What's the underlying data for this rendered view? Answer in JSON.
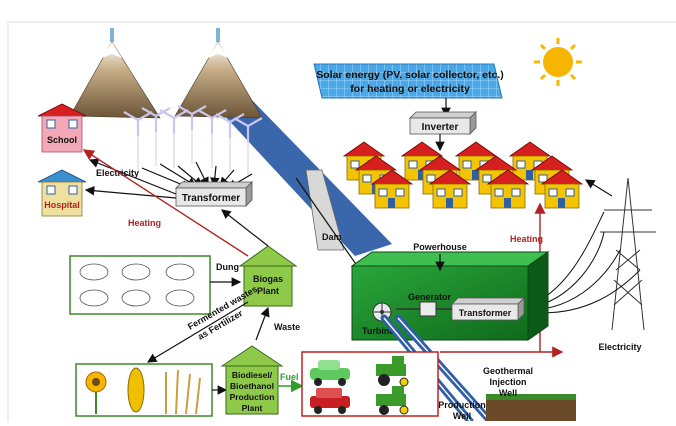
{
  "labels": {
    "solar_energy_line1": "Solar energy (PV, solar collector, etc.)",
    "solar_energy_line2": "for heating or electricity",
    "inverter": "Inverter",
    "school": "School",
    "hospital": "Hospital",
    "electricity_left": "Electricity",
    "transformer_top": "Transformer",
    "heating_left": "Heating",
    "dam": "Dam",
    "powerhouse": "Powerhouse",
    "generator": "Generator",
    "transformer_ph": "Transformer",
    "turbine": "Turbine",
    "heating_right": "Heating",
    "electricity_right": "Electricity",
    "dung": "Dung",
    "biogas_line1": "Biogas",
    "biogas_line2": "Plant",
    "waste": "Waste",
    "fermented_line1": "Fermented wastes",
    "fermented_line2": "as Fertilizer",
    "biodiesel_line1": "Biodiesel/",
    "biodiesel_line2": "Bioethanol",
    "biodiesel_line3": "Production",
    "biodiesel_line4": "Plant",
    "fuel": "Fuel",
    "geothermal_line1": "Geothermal",
    "geothermal_line2": "Injection",
    "geothermal_line3": "Well",
    "production_line1": "Production",
    "production_line2": "Well"
  },
  "colors": {
    "heating": "#b22222",
    "fuel": "#2e9e2e",
    "powerhouse": "#1f8f2f",
    "river": "#2f5fa8",
    "solar_panel": "#4aa8e8",
    "house_roof": "#d62020",
    "house_wall": "#f5c400",
    "school_roof": "#d62020",
    "school_wall": "#f3a8b8",
    "hospital_roof": "#3a8fd0",
    "hospital_wall": "#f0e0a0",
    "plant_green": "#8ec94a",
    "sun": "#f7b500"
  }
}
